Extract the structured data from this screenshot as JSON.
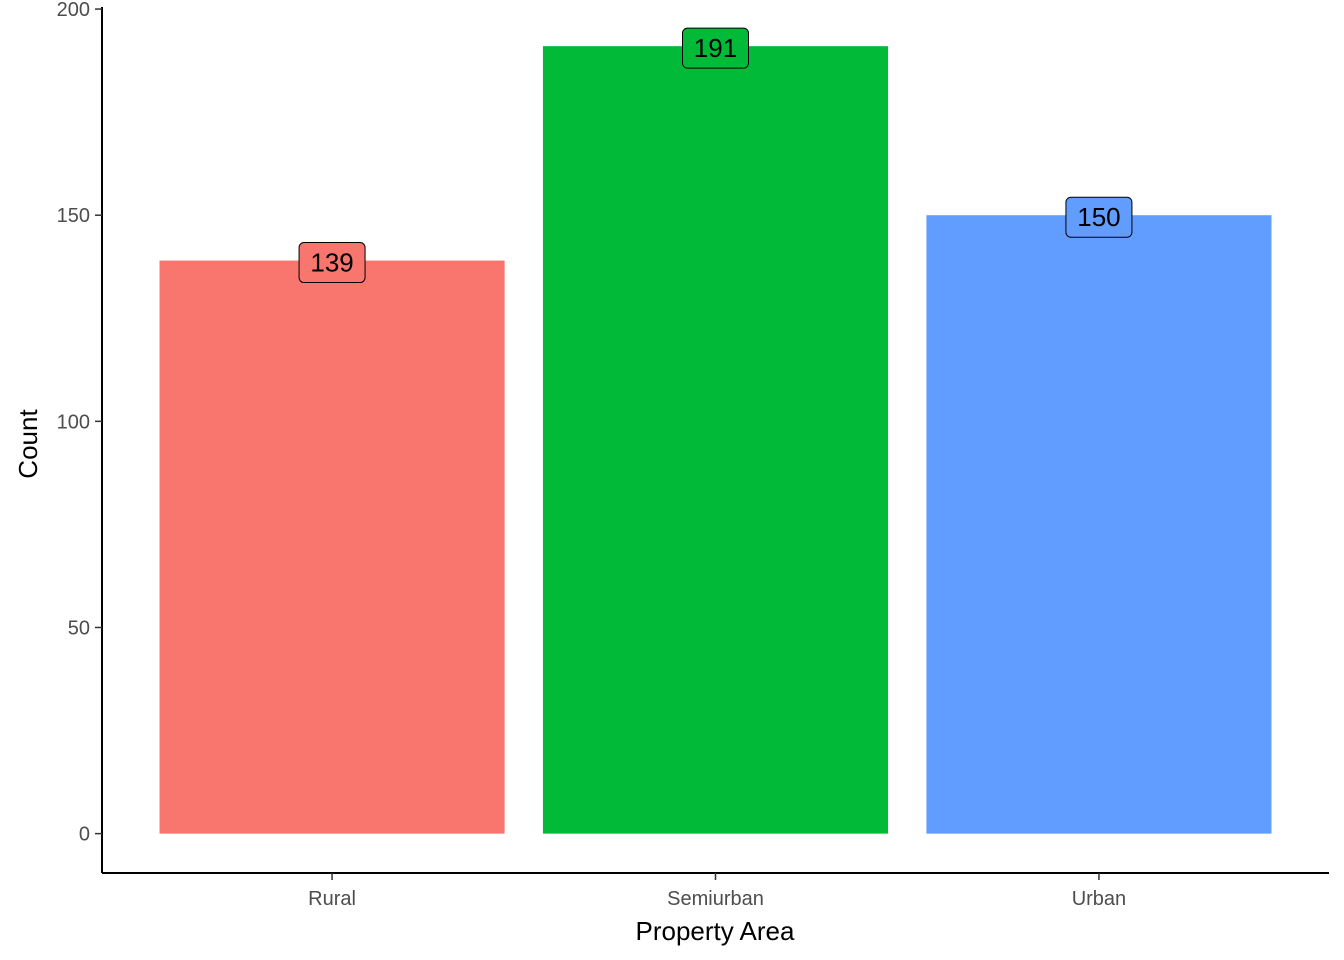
{
  "chart_data": {
    "type": "bar",
    "categories": [
      "Rural",
      "Semiurban",
      "Urban"
    ],
    "values": [
      139,
      191,
      150
    ],
    "data_labels": [
      "139",
      "191",
      "150"
    ],
    "colors": [
      "#F8766D",
      "#00BA38",
      "#619CFF"
    ],
    "title": "",
    "xlabel": "Property Area",
    "ylabel": "Count",
    "ylim": [
      -9.55,
      200.5
    ],
    "yticks": [
      0,
      50,
      100,
      150,
      200
    ],
    "ytick_labels": [
      "0",
      "50",
      "100",
      "150",
      "200"
    ],
    "grid": false,
    "legend": "none"
  }
}
